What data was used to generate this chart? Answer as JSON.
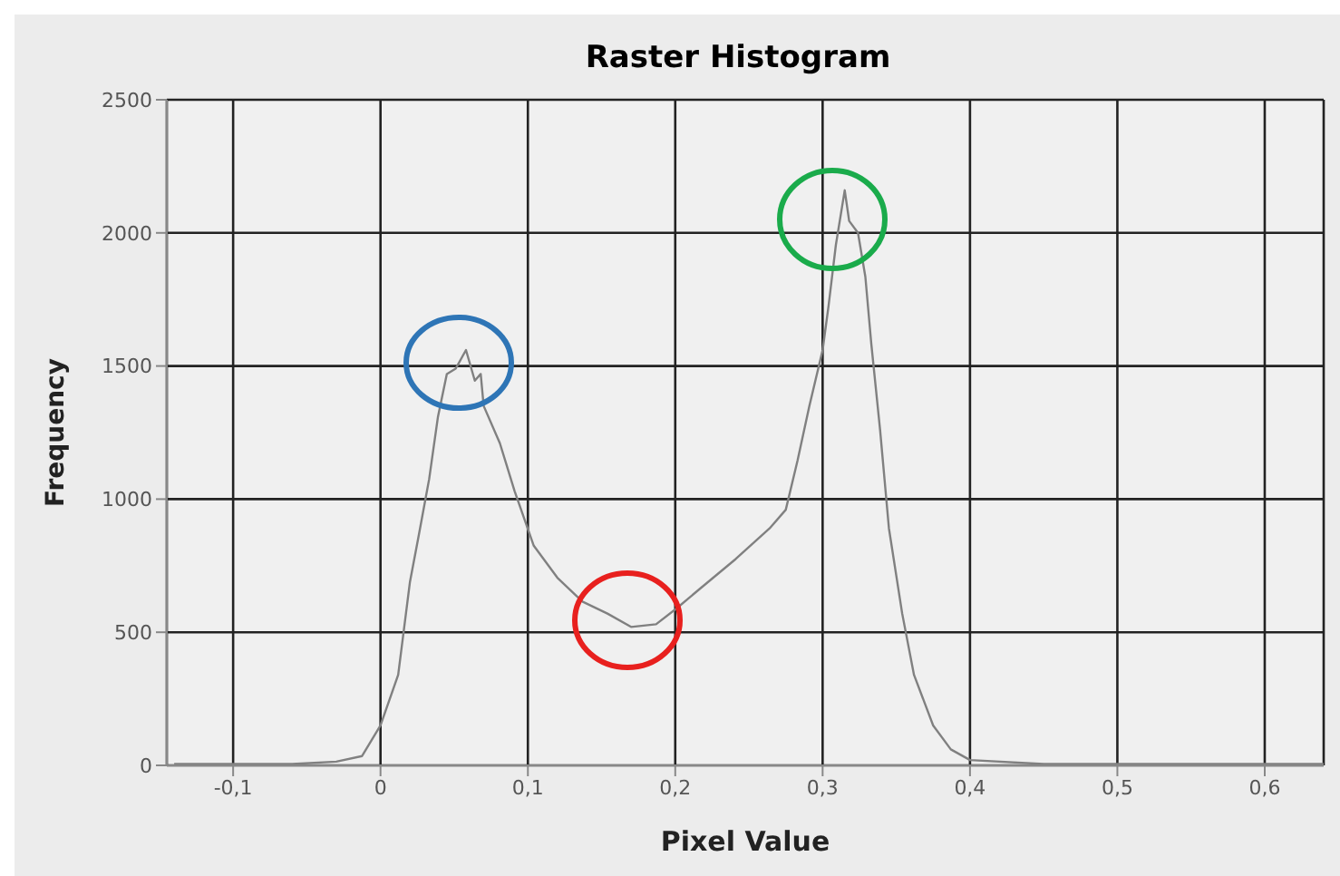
{
  "chart_data": {
    "type": "line",
    "title": "Raster Histogram",
    "xlabel": "Pixel Value",
    "ylabel": "Frequency",
    "xlim": [
      -0.145,
      0.64
    ],
    "ylim": [
      0,
      2500
    ],
    "xticks": [
      {
        "value": -0.1,
        "label": "-0,1"
      },
      {
        "value": 0,
        "label": "0"
      },
      {
        "value": 0.1,
        "label": "0,1"
      },
      {
        "value": 0.2,
        "label": "0,2"
      },
      {
        "value": 0.3,
        "label": "0,3"
      },
      {
        "value": 0.4,
        "label": "0,4"
      },
      {
        "value": 0.5,
        "label": "0,5"
      },
      {
        "value": 0.6,
        "label": "0,6"
      }
    ],
    "yticks": [
      0,
      500,
      1000,
      1500,
      2000,
      2500
    ],
    "grid": true,
    "marker": "none",
    "series": [
      {
        "color": "#808080",
        "x": [
          -0.14,
          -0.1,
          -0.06,
          -0.03,
          -0.0125,
          0,
          0.012,
          0.02,
          0.026,
          0.033,
          0.039,
          0.045,
          0.051,
          0.058,
          0.064,
          0.068,
          0.07,
          0.081,
          0.091,
          0.104,
          0.12,
          0.137,
          0.154,
          0.17,
          0.187,
          0.201,
          0.216,
          0.241,
          0.264,
          0.275,
          0.283,
          0.291,
          0.3,
          0.304,
          0.309,
          0.315,
          0.318,
          0.324,
          0.329,
          0.333,
          0.339,
          0.345,
          0.354,
          0.362,
          0.375,
          0.387,
          0.4,
          0.45,
          0.5,
          0.55,
          0.6,
          0.64
        ],
        "values": [
          5,
          5,
          5,
          14,
          35,
          150,
          340,
          690,
          865,
          1075,
          1310,
          1470,
          1490,
          1560,
          1445,
          1470,
          1350,
          1210,
          1030,
          825,
          705,
          615,
          570,
          520,
          530,
          590,
          660,
          775,
          890,
          960,
          1145,
          1350,
          1560,
          1725,
          1955,
          2160,
          2045,
          2000,
          1835,
          1585,
          1260,
          890,
          570,
          340,
          150,
          60,
          20,
          5,
          5,
          5,
          5,
          5
        ]
      }
    ]
  }
}
